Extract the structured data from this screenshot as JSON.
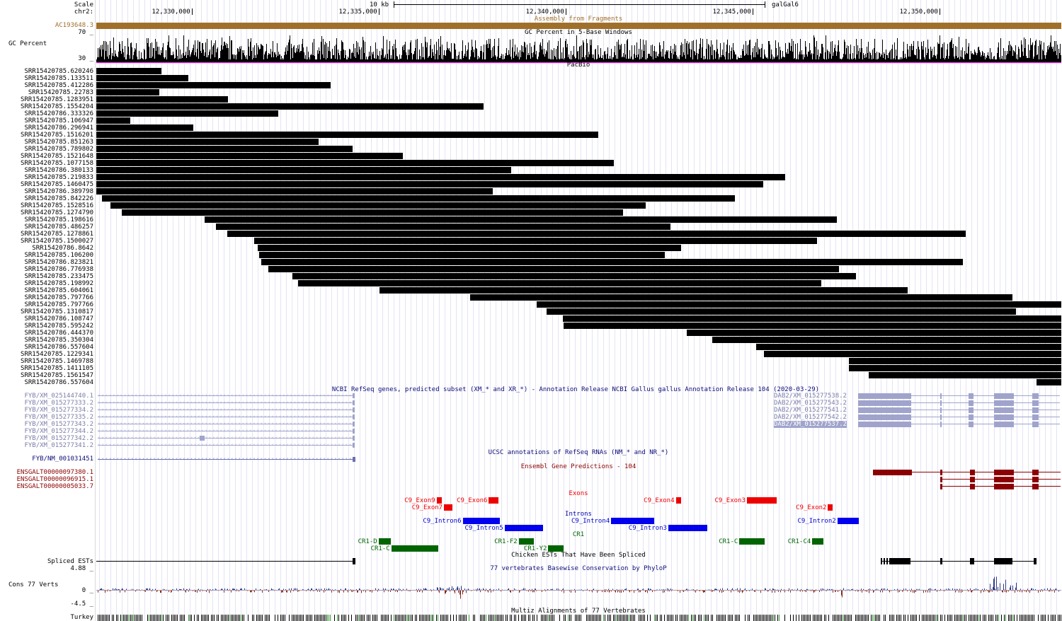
{
  "ruler": {
    "scale_label": "Scale",
    "chrom_label": "chr2:",
    "scale_text": "10 kb",
    "assembly": "galGal6",
    "ticks": [
      "12,330,000",
      "12,335,000",
      "12,340,000",
      "12,345,000",
      "12,350,000"
    ]
  },
  "assembly_track": {
    "title": "Assembly from Fragments",
    "fragment": "AC193648.3",
    "color": "#a0702a"
  },
  "gc_track": {
    "title": "GC Percent in 5-Base Windows",
    "label": "GC Percent",
    "max_label": "70 _",
    "min_label": "30 _"
  },
  "pacbio": {
    "title": "PacBio",
    "reads": [
      {
        "name": "SRR15420785.620246",
        "start": 12327450,
        "end": 12329190
      },
      {
        "name": "SRR15420785.133511",
        "start": 12327450,
        "end": 12329910
      },
      {
        "name": "SRR15420785.412286",
        "start": 12327450,
        "end": 12333710
      },
      {
        "name": "SRR15420785.22783",
        "start": 12327450,
        "end": 12329130
      },
      {
        "name": "SRR15420785.1283951",
        "start": 12327450,
        "end": 12330980
      },
      {
        "name": "SRR15420785.1554204",
        "start": 12327450,
        "end": 12337810
      },
      {
        "name": "SRR15420786.333326",
        "start": 12327450,
        "end": 12332310
      },
      {
        "name": "SRR15420785.106947",
        "start": 12327450,
        "end": 12328350
      },
      {
        "name": "SRR15420786.296941",
        "start": 12327450,
        "end": 12330050
      },
      {
        "name": "SRR15420785.1516201",
        "start": 12327450,
        "end": 12340870
      },
      {
        "name": "SRR15420785.851263",
        "start": 12327450,
        "end": 12333390
      },
      {
        "name": "SRR15420785.789802",
        "start": 12327450,
        "end": 12334310
      },
      {
        "name": "SRR15420785.1521648",
        "start": 12327450,
        "end": 12335650
      },
      {
        "name": "SRR15420785.1077158",
        "start": 12327450,
        "end": 12341290
      },
      {
        "name": "SRR15420786.380133",
        "start": 12327450,
        "end": 12338550
      },
      {
        "name": "SRR15420785.219833",
        "start": 12327450,
        "end": 12345870
      },
      {
        "name": "SRR15420785.1460475",
        "start": 12327450,
        "end": 12345290
      },
      {
        "name": "SRR15420786.389798",
        "start": 12327450,
        "end": 12338050
      },
      {
        "name": "SRR15420785.842226",
        "start": 12327600,
        "end": 12344530
      },
      {
        "name": "SRR15420785.1528516",
        "start": 12327830,
        "end": 12342150
      },
      {
        "name": "SRR15420785.1274790",
        "start": 12328130,
        "end": 12341530
      },
      {
        "name": "SRR15420785.198616",
        "start": 12330350,
        "end": 12347250
      },
      {
        "name": "SRR15420785.486257",
        "start": 12330650,
        "end": 12342810
      },
      {
        "name": "SRR15420785.1278861",
        "start": 12330950,
        "end": 12350710
      },
      {
        "name": "SRR15420785.1500027",
        "start": 12331670,
        "end": 12346730
      },
      {
        "name": "SRR15420786.8642",
        "start": 12331770,
        "end": 12343090
      },
      {
        "name": "SRR15420785.106200",
        "start": 12331810,
        "end": 12342650
      },
      {
        "name": "SRR15420786.823821",
        "start": 12331870,
        "end": 12350630
      },
      {
        "name": "SRR15420786.776938",
        "start": 12332050,
        "end": 12347310
      },
      {
        "name": "SRR15420785.233475",
        "start": 12332690,
        "end": 12347770
      },
      {
        "name": "SRR15420785.198992",
        "start": 12332850,
        "end": 12346850
      },
      {
        "name": "SRR15420785.604061",
        "start": 12335030,
        "end": 12349150
      },
      {
        "name": "SRR15420785.797766",
        "start": 12337450,
        "end": 12351950
      },
      {
        "name": "SRR15420785.797766",
        "start": 12339230,
        "end": 12353260
      },
      {
        "name": "SRR15420785.1310817",
        "start": 12339490,
        "end": 12352050
      },
      {
        "name": "SRR15420786.108747",
        "start": 12339930,
        "end": 12353260
      },
      {
        "name": "SRR15420785.595242",
        "start": 12339950,
        "end": 12353260
      },
      {
        "name": "SRR15420786.444370",
        "start": 12343250,
        "end": 12353260
      },
      {
        "name": "SRR15420785.350304",
        "start": 12343930,
        "end": 12353260
      },
      {
        "name": "SRR15420786.557604",
        "start": 12345090,
        "end": 12353260
      },
      {
        "name": "SRR15420785.1229341",
        "start": 12345310,
        "end": 12353260
      },
      {
        "name": "SRR15420785.1469788",
        "start": 12347570,
        "end": 12353260
      },
      {
        "name": "SRR15420785.1411105",
        "start": 12347570,
        "end": 12353260
      },
      {
        "name": "SRR15420785.1561547",
        "start": 12348110,
        "end": 12353260
      },
      {
        "name": "SRR15420786.557604",
        "start": 12352590,
        "end": 12353260
      }
    ]
  },
  "refseq_pred": {
    "title": "NCBI RefSeq genes, predicted subset (XM_* and XR_*) - Annotation Release NCBI Gallus gallus Annotation Release 104 (2020-03-29)",
    "left_genes": [
      "FYB/XM_025144740.1",
      "FYB/XM_015277333.2",
      "FYB/XM_015277334.2",
      "FYB/XM_015277335.2",
      "FYB/XM_015277343.2",
      "FYB/XM_015277344.2",
      "FYB/XM_015277342.2",
      "FYB/XM_015277341.2"
    ],
    "right_genes": [
      "DAB2/XM_015277538.2",
      "DAB2/XM_015277543.2",
      "DAB2/XM_015277541.2",
      "DAB2/XM_015277542.2",
      "DAB2/XM_015277537.2"
    ],
    "color": "#a0a4cc"
  },
  "ucsc_refseq": {
    "title": "UCSC annotations of RefSeq RNAs (NM_* and NR_*)",
    "gene": "FYB/NM_001031451"
  },
  "ensembl": {
    "title": "Ensembl Gene Predictions - 104",
    "genes": [
      "ENSGALT00000097380.1",
      "ENSGALT00000096915.1",
      "ENSGALT00000005033.7"
    ],
    "color": "#8b0000"
  },
  "exons": {
    "title": "Exons",
    "color": "#ee0000",
    "items": [
      {
        "name": "C9_Exon9",
        "start": 12336550,
        "end": 12336700,
        "label_side": "left",
        "row": 0
      },
      {
        "name": "C9_Exon6",
        "start": 12337950,
        "end": 12338200,
        "label_side": "left",
        "row": 0
      },
      {
        "name": "C9_Exon4",
        "start": 12342950,
        "end": 12343100,
        "label_side": "left",
        "row": 0
      },
      {
        "name": "C9_Exon3",
        "start": 12344850,
        "end": 12345650,
        "label_side": "left",
        "row": 0
      },
      {
        "name": "C9_Exon7",
        "start": 12336750,
        "end": 12336980,
        "label_side": "left",
        "row": 1
      },
      {
        "name": "C9_Exon2",
        "start": 12347020,
        "end": 12347150,
        "label_side": "left",
        "row": 1
      }
    ]
  },
  "introns": {
    "title": "Introns",
    "color": "#0000ee",
    "items": [
      {
        "name": "C9_Intron6",
        "start": 12337250,
        "end": 12338250,
        "label_side": "left",
        "row": 0
      },
      {
        "name": "C9_Intron4",
        "start": 12341220,
        "end": 12342380,
        "label_side": "left",
        "row": 0
      },
      {
        "name": "C9_Intron2",
        "start": 12347270,
        "end": 12347850,
        "label_side": "left",
        "row": 0
      },
      {
        "name": "C9_Intron5",
        "start": 12338370,
        "end": 12339400,
        "label_side": "left",
        "row": 1
      },
      {
        "name": "C9_Intron3",
        "start": 12342750,
        "end": 12343800,
        "label_side": "left",
        "row": 1
      }
    ]
  },
  "cr1": {
    "title": "CR1",
    "color": "#006400",
    "items": [
      {
        "name": "CR1-D",
        "start": 12335000,
        "end": 12335330,
        "row": 0
      },
      {
        "name": "CR1-F2",
        "start": 12338750,
        "end": 12339150,
        "row": 0
      },
      {
        "name": "CR1-C",
        "start": 12344650,
        "end": 12345330,
        "row": 0
      },
      {
        "name": "CR1-C4",
        "start": 12346600,
        "end": 12346900,
        "row": 0
      },
      {
        "name": "CR1-C",
        "start": 12335340,
        "end": 12336600,
        "row": 1
      },
      {
        "name": "CR1-Y2",
        "start": 12339540,
        "end": 12339950,
        "row": 1
      }
    ]
  },
  "spliced_ests": {
    "title": "Chicken ESTs That Have Been Spliced",
    "label": "Spliced ESTs"
  },
  "phylop": {
    "title": "77 vertebrates Basewise Conservation by PhyloP",
    "label": "Cons 77 Verts",
    "max_label": "4.88 _",
    "zero_label": "0 _",
    "min_label": "-4.5 _",
    "pos_color": "#2e3b8c",
    "neg_color": "#8b2a1a"
  },
  "multiz": {
    "title": "Multiz Alignments of 77 Vertebrates",
    "species": "Turkey"
  }
}
